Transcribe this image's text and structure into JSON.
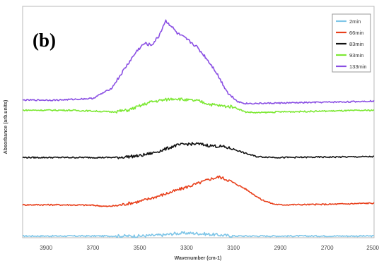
{
  "panel_label": "(b)",
  "chart_data": {
    "type": "line",
    "xlabel": "Wavenumber (cm-1)",
    "ylabel": "Absorbance (arb.units)",
    "xlim": [
      4000,
      2500
    ],
    "x_reversed": true,
    "y_ticks_shown": false,
    "xticks": [
      3900,
      3700,
      3500,
      3300,
      3100,
      2900,
      2700,
      2500
    ],
    "legend_position": "top-right",
    "series": [
      {
        "name": "2min",
        "color": "#7fc6e8",
        "points": [
          [
            4000,
            0.0
          ],
          [
            3500,
            0.0
          ],
          [
            3400,
            0.012
          ],
          [
            3350,
            0.03
          ],
          [
            3300,
            0.035
          ],
          [
            3250,
            0.03
          ],
          [
            3200,
            0.02
          ],
          [
            3100,
            0.0
          ],
          [
            2500,
            0.0
          ]
        ]
      },
      {
        "name": "66min",
        "color": "#e8401c",
        "points": [
          [
            4000,
            0.37
          ],
          [
            3850,
            0.37
          ],
          [
            3700,
            0.365
          ],
          [
            3640,
            0.35
          ],
          [
            3600,
            0.36
          ],
          [
            3500,
            0.41
          ],
          [
            3400,
            0.49
          ],
          [
            3300,
            0.58
          ],
          [
            3250,
            0.625
          ],
          [
            3200,
            0.675
          ],
          [
            3160,
            0.7
          ],
          [
            3120,
            0.66
          ],
          [
            3050,
            0.56
          ],
          [
            2980,
            0.43
          ],
          [
            2930,
            0.38
          ],
          [
            2900,
            0.37
          ],
          [
            2700,
            0.375
          ],
          [
            2500,
            0.39
          ]
        ]
      },
      {
        "name": "83min",
        "color": "#111111",
        "points": [
          [
            4000,
            0.93
          ],
          [
            3700,
            0.93
          ],
          [
            3600,
            0.93
          ],
          [
            3500,
            0.95
          ],
          [
            3450,
            0.98
          ],
          [
            3400,
            1.02
          ],
          [
            3350,
            1.07
          ],
          [
            3300,
            1.09
          ],
          [
            3250,
            1.09
          ],
          [
            3200,
            1.07
          ],
          [
            3150,
            1.06
          ],
          [
            3100,
            1.03
          ],
          [
            3050,
            0.98
          ],
          [
            3000,
            0.94
          ],
          [
            2900,
            0.93
          ],
          [
            2500,
            0.94
          ]
        ]
      },
      {
        "name": "93min",
        "color": "#7de834",
        "points": [
          [
            4000,
            1.49
          ],
          [
            3800,
            1.49
          ],
          [
            3700,
            1.48
          ],
          [
            3620,
            1.47
          ],
          [
            3550,
            1.49
          ],
          [
            3500,
            1.54
          ],
          [
            3450,
            1.59
          ],
          [
            3400,
            1.61
          ],
          [
            3350,
            1.63
          ],
          [
            3300,
            1.61
          ],
          [
            3250,
            1.6
          ],
          [
            3200,
            1.56
          ],
          [
            3150,
            1.54
          ],
          [
            3100,
            1.53
          ],
          [
            3050,
            1.47
          ],
          [
            3000,
            1.46
          ],
          [
            2900,
            1.47
          ],
          [
            2500,
            1.49
          ]
        ]
      },
      {
        "name": "133min",
        "color": "#8a4fe3",
        "points": [
          [
            4000,
            1.61
          ],
          [
            3850,
            1.61
          ],
          [
            3700,
            1.63
          ],
          [
            3620,
            1.75
          ],
          [
            3560,
            2.0
          ],
          [
            3510,
            2.2
          ],
          [
            3480,
            2.28
          ],
          [
            3450,
            2.26
          ],
          [
            3420,
            2.36
          ],
          [
            3390,
            2.55
          ],
          [
            3370,
            2.5
          ],
          [
            3340,
            2.4
          ],
          [
            3300,
            2.33
          ],
          [
            3260,
            2.25
          ],
          [
            3220,
            2.12
          ],
          [
            3180,
            1.97
          ],
          [
            3150,
            1.82
          ],
          [
            3120,
            1.68
          ],
          [
            3080,
            1.59
          ],
          [
            3050,
            1.57
          ],
          [
            3000,
            1.57
          ],
          [
            2800,
            1.58
          ],
          [
            2600,
            1.59
          ],
          [
            2500,
            1.6
          ]
        ]
      }
    ]
  }
}
